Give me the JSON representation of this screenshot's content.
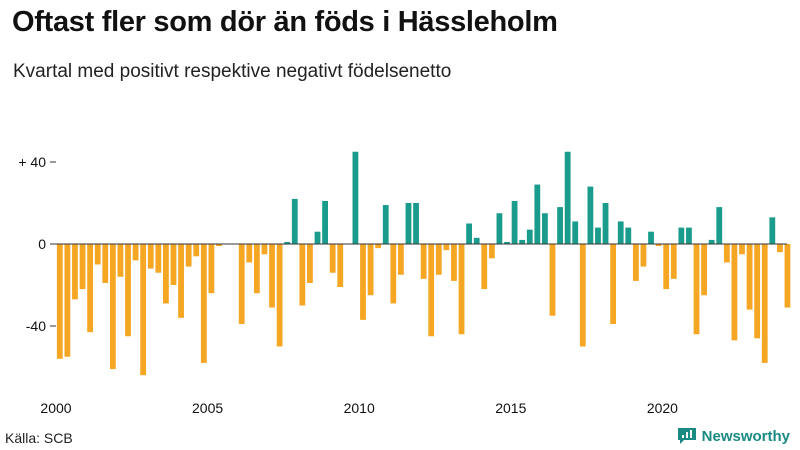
{
  "header": {
    "title": "Oftast fler som dör än föds i Hässleholm",
    "subtitle": "Kvartal med positivt respektive negativt födelsenetto"
  },
  "footer": {
    "source": "Källa: SCB",
    "brand": "Newsworthy",
    "brand_icon": "newsworthy-logo-icon"
  },
  "colors": {
    "positive": "#1a9c8c",
    "negative": "#f5a623",
    "axis": "#333333",
    "brand": "#1a8b83"
  },
  "chart_data": {
    "type": "bar",
    "title": "Oftast fler som dör än föds i Hässleholm",
    "subtitle": "Kvartal med positivt respektive negativt födelsenetto",
    "xlabel": "",
    "ylabel": "",
    "ylim": [
      -70,
      50
    ],
    "yticks": [
      {
        "value": 40,
        "label": "+ 40"
      },
      {
        "value": 0,
        "label": "0"
      },
      {
        "value": -40,
        "label": "-40"
      }
    ],
    "xticks": [
      {
        "value": 2000,
        "label": "2000"
      },
      {
        "value": 2005,
        "label": "2005"
      },
      {
        "value": 2010,
        "label": "2010"
      },
      {
        "value": 2015,
        "label": "2015"
      },
      {
        "value": 2020,
        "label": "2020"
      }
    ],
    "x_start_year": 2000,
    "periods_per_year": 4,
    "values": [
      -56,
      -55,
      -27,
      -22,
      -43,
      -10,
      -19,
      -61,
      -16,
      -45,
      -8,
      -64,
      -12,
      -14,
      -29,
      -20,
      -36,
      -11,
      -6,
      -58,
      -24,
      -1,
      0,
      0,
      -39,
      -9,
      -24,
      -5,
      -31,
      -50,
      1,
      22,
      -30,
      -19,
      6,
      21,
      -14,
      -21,
      0,
      45,
      -37,
      -25,
      -2,
      19,
      -29,
      -15,
      20,
      20,
      -17,
      -45,
      -15,
      -3,
      -18,
      -44,
      10,
      3,
      -22,
      -7,
      15,
      1,
      21,
      2,
      7,
      29,
      15,
      -35,
      18,
      45,
      11,
      -50,
      28,
      8,
      20,
      -39,
      11,
      8,
      -18,
      -11,
      6,
      -1,
      -22,
      -17,
      8,
      8,
      -44,
      -25,
      2,
      18,
      -9,
      -47,
      -5,
      -32,
      -46,
      -58,
      13,
      -4,
      -31
    ]
  }
}
